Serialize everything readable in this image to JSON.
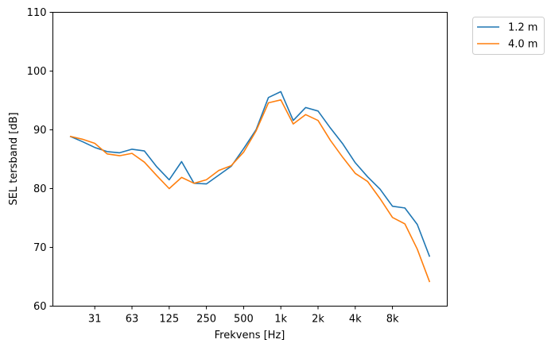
{
  "chart_data": {
    "type": "line",
    "title": "",
    "xlabel": "Frekvens [Hz]",
    "ylabel": "SEL tersband [dB]",
    "ylim": [
      60,
      110
    ],
    "yticks": [
      60,
      70,
      80,
      90,
      100,
      110
    ],
    "x": [
      "20",
      "25",
      "31.5",
      "40",
      "50",
      "63",
      "80",
      "100",
      "125",
      "160",
      "200",
      "250",
      "315",
      "400",
      "500",
      "630",
      "800",
      "1k",
      "1.25k",
      "1.6k",
      "2k",
      "2.5k",
      "3.15k",
      "4k",
      "5k",
      "6.3k",
      "8k",
      "10k",
      "12.5k",
      "16k"
    ],
    "xtick_labels": [
      "31",
      "63",
      "125",
      "250",
      "500",
      "1k",
      "2k",
      "4k",
      "8k"
    ],
    "xtick_indices": [
      2,
      5,
      8,
      11,
      14,
      17,
      20,
      23,
      26
    ],
    "legend_position": "outside-top-right",
    "grid": false,
    "series": [
      {
        "name": "1.2 m",
        "color": "#1f77b4",
        "values": [
          88.9,
          88.0,
          87.0,
          86.3,
          86.1,
          86.7,
          86.4,
          83.7,
          81.5,
          84.6,
          80.9,
          80.8,
          82.3,
          83.8,
          86.8,
          90.0,
          95.5,
          96.5,
          91.6,
          93.8,
          93.2,
          90.3,
          87.6,
          84.4,
          82.0,
          79.9,
          77.0,
          76.7,
          73.9,
          68.4
        ]
      },
      {
        "name": "4.0 m",
        "color": "#ff7f0e",
        "values": [
          88.9,
          88.4,
          87.7,
          85.9,
          85.6,
          86.0,
          84.5,
          82.2,
          80.0,
          81.9,
          80.9,
          81.5,
          83.1,
          83.9,
          86.2,
          89.8,
          94.6,
          95.1,
          91.0,
          92.6,
          91.6,
          88.2,
          85.3,
          82.6,
          81.2,
          78.3,
          75.1,
          74.0,
          69.7,
          64.1
        ]
      }
    ]
  }
}
